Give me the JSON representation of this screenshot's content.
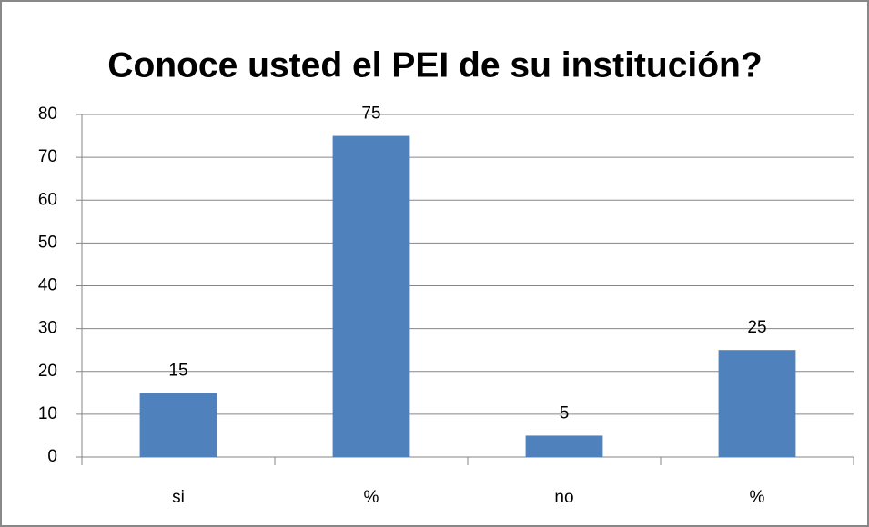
{
  "chart_data": {
    "type": "bar",
    "title": "Conoce usted el PEI de su institución?",
    "categories": [
      "si",
      "%",
      "no",
      "%"
    ],
    "values": [
      15,
      75,
      5,
      25
    ],
    "color": "#4f81bd",
    "ylim": [
      0,
      80
    ],
    "yticks": [
      0,
      10,
      20,
      30,
      40,
      50,
      60,
      70,
      80
    ],
    "grid": true
  }
}
